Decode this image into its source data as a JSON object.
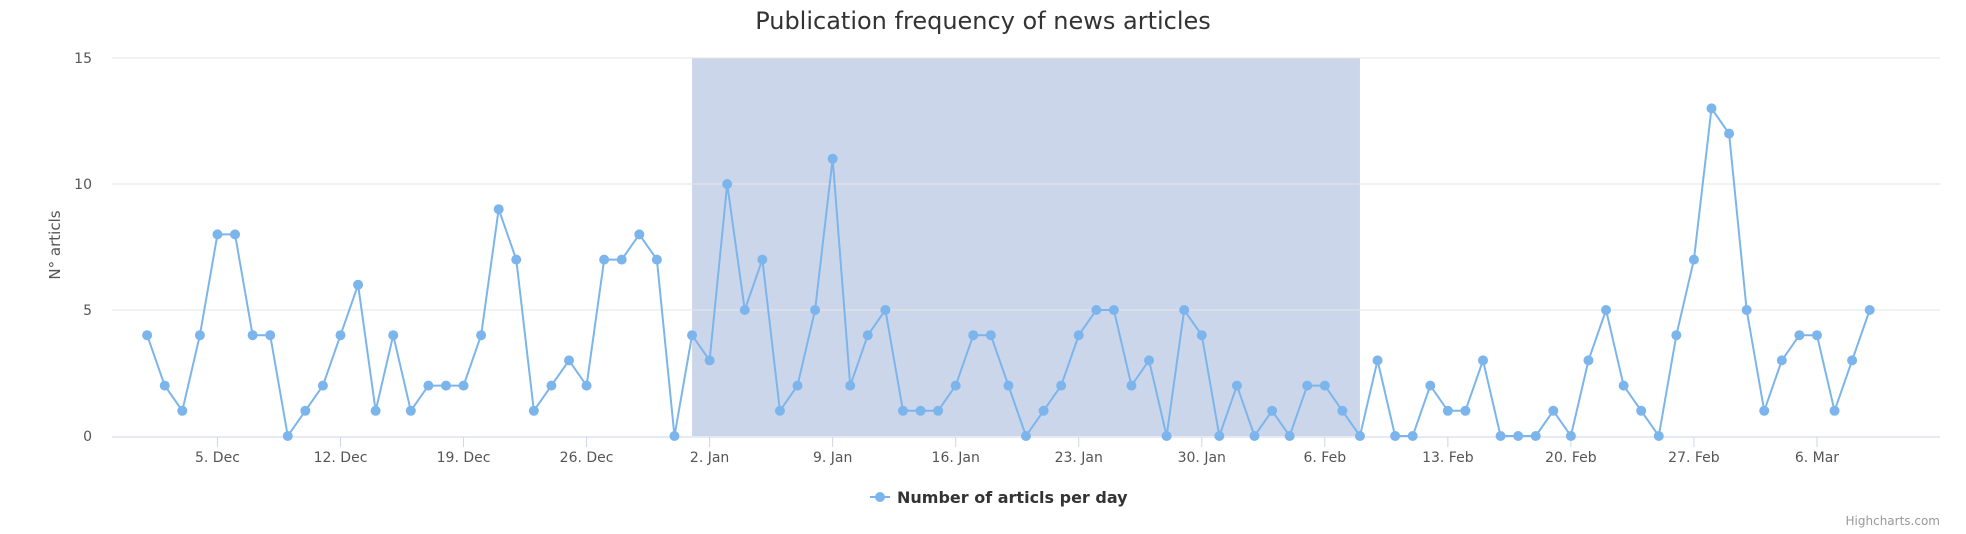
{
  "chart_data": {
    "type": "line",
    "title": "Publication frequency of news articles",
    "ylabel": "N° articls",
    "ylim": [
      0,
      15
    ],
    "y_ticks": [
      0,
      5,
      10,
      15
    ],
    "x_range": [
      "2021-11-29",
      "2022-03-13"
    ],
    "x_ticks": [
      {
        "date": "2021-12-05",
        "label": "5. Dec"
      },
      {
        "date": "2021-12-12",
        "label": "12. Dec"
      },
      {
        "date": "2021-12-19",
        "label": "19. Dec"
      },
      {
        "date": "2021-12-26",
        "label": "26. Dec"
      },
      {
        "date": "2022-01-02",
        "label": "2. Jan"
      },
      {
        "date": "2022-01-09",
        "label": "9. Jan"
      },
      {
        "date": "2022-01-16",
        "label": "16. Jan"
      },
      {
        "date": "2022-01-23",
        "label": "23. Jan"
      },
      {
        "date": "2022-01-30",
        "label": "30. Jan"
      },
      {
        "date": "2022-02-06",
        "label": "6. Feb"
      },
      {
        "date": "2022-02-13",
        "label": "13. Feb"
      },
      {
        "date": "2022-02-20",
        "label": "20. Feb"
      },
      {
        "date": "2022-02-27",
        "label": "27. Feb"
      },
      {
        "date": "2022-03-06",
        "label": "6. Mar"
      }
    ],
    "highlight_band": {
      "from": "2022-01-01",
      "to": "2022-02-08",
      "color": "#ccd6eb"
    },
    "series": [
      {
        "name": "Number of articls per day",
        "color": "#7cb5ec",
        "start_date": "2021-12-01",
        "values": [
          4,
          2,
          1,
          4,
          8,
          8,
          4,
          4,
          0,
          1,
          2,
          4,
          6,
          1,
          4,
          1,
          2,
          2,
          2,
          4,
          9,
          7,
          1,
          2,
          3,
          2,
          7,
          7,
          8,
          7,
          0,
          4,
          3,
          10,
          5,
          7,
          1,
          2,
          5,
          11,
          2,
          4,
          5,
          1,
          1,
          1,
          2,
          4,
          4,
          2,
          0,
          1,
          2,
          4,
          5,
          5,
          2,
          3,
          0,
          5,
          4,
          0,
          2,
          0,
          1,
          0,
          2,
          2,
          1,
          0,
          3,
          0,
          0,
          2,
          1,
          1,
          3,
          0,
          0,
          0,
          1,
          0,
          3,
          5,
          2,
          1,
          0,
          4,
          7,
          13,
          12,
          5,
          1,
          3,
          4,
          4,
          1,
          3,
          5
        ]
      }
    ],
    "legend": "bottom-center",
    "credits": "Highcharts.com"
  }
}
